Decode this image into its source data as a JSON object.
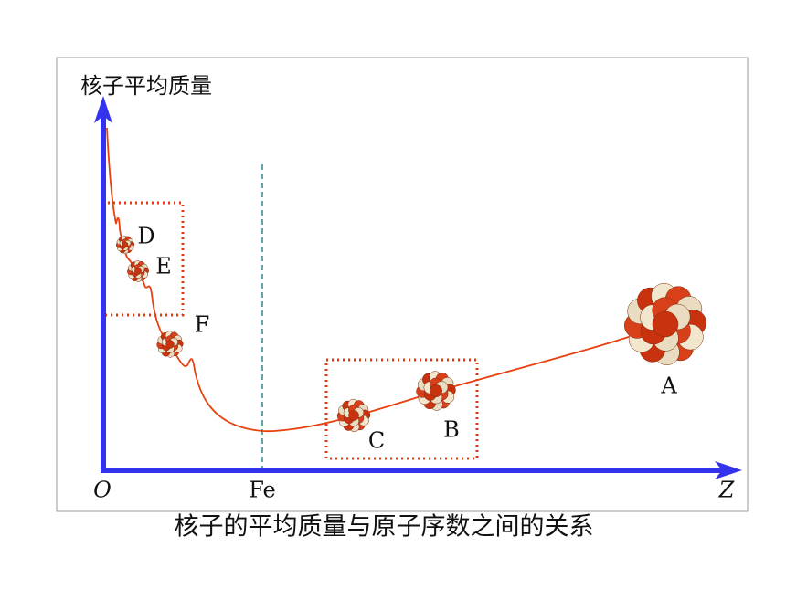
{
  "y_axis_label": "核子平均质量",
  "x_axis_label": "Z",
  "origin_label": "O",
  "fe_label": "Fe",
  "nuclei": [
    {
      "label": "D"
    },
    {
      "label": "E"
    },
    {
      "label": "F"
    },
    {
      "label": "C"
    },
    {
      "label": "B"
    },
    {
      "label": "A"
    }
  ],
  "caption": "核子的平均质量与原子序数之间的关系"
}
